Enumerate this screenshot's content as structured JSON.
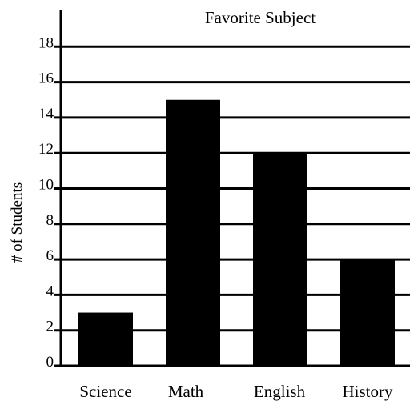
{
  "chart_data": {
    "type": "bar",
    "title": "Favorite Subject",
    "xlabel": "",
    "ylabel": "# of Students",
    "categories": [
      "Science",
      "Math",
      "English",
      "History"
    ],
    "values": [
      3,
      15,
      12,
      6
    ],
    "ylim": [
      0,
      19
    ],
    "yticks": [
      0,
      2,
      4,
      6,
      8,
      10,
      12,
      14,
      16,
      18
    ],
    "grid": true,
    "legend": "none",
    "colors": {
      "bar": "#000000",
      "grid": "#000000",
      "axis": "#000000",
      "background": "#ffffff"
    }
  }
}
